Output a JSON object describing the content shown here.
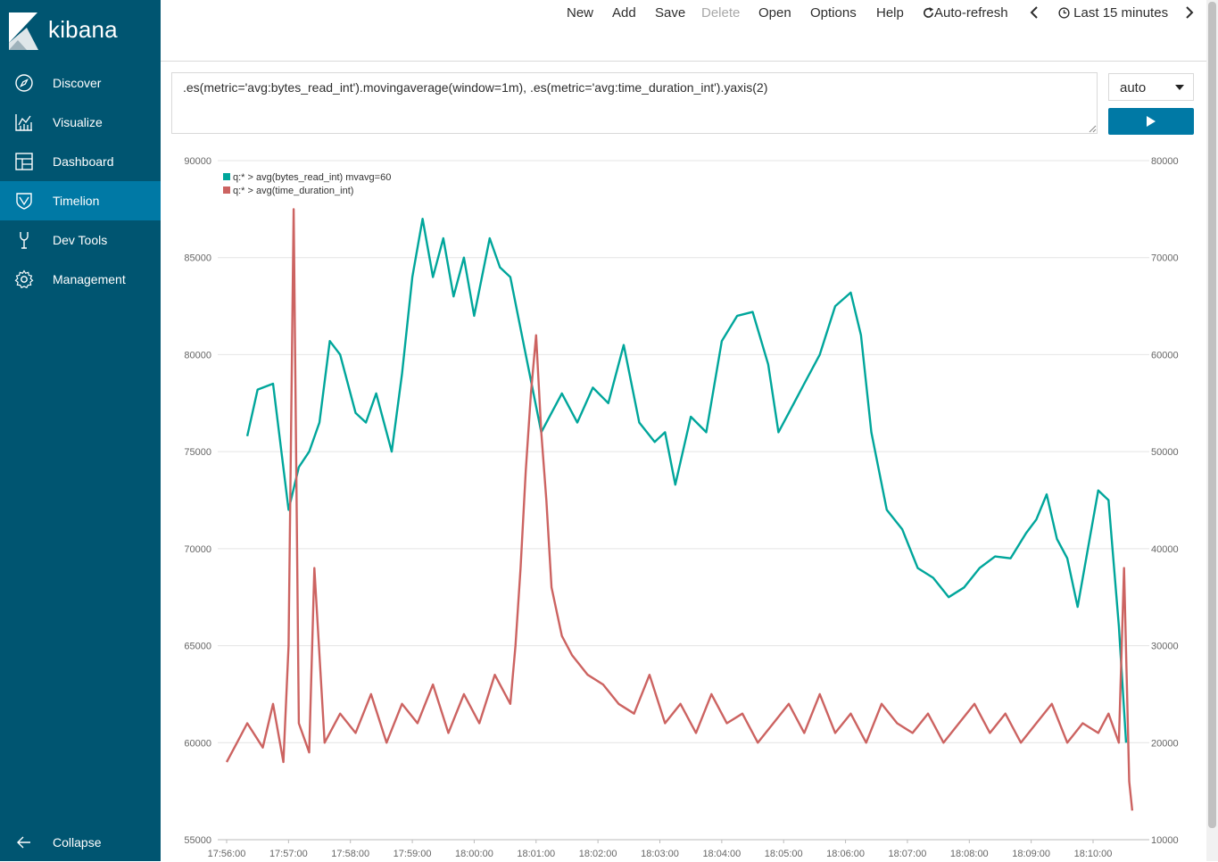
{
  "app": {
    "name": "kibana"
  },
  "sidebar": {
    "items": [
      {
        "label": "Discover",
        "icon": "compass-icon"
      },
      {
        "label": "Visualize",
        "icon": "bar-chart-icon"
      },
      {
        "label": "Dashboard",
        "icon": "dashboard-icon"
      },
      {
        "label": "Timelion",
        "icon": "timelion-shield-icon",
        "active": true
      },
      {
        "label": "Dev Tools",
        "icon": "wrench-icon"
      },
      {
        "label": "Management",
        "icon": "gear-icon"
      }
    ],
    "collapse_label": "Collapse"
  },
  "topnav": {
    "new": "New",
    "add": "Add",
    "save": "Save",
    "delete": "Delete",
    "open": "Open",
    "options": "Options",
    "help": "Help",
    "auto_refresh": "Auto-refresh",
    "time_range": "Last 15 minutes"
  },
  "query": {
    "expression": ".es(metric='avg:bytes_read_int').movingaverage(window=1m), .es(metric='avg:time_duration_int').yaxis(2)"
  },
  "interval": {
    "selected": "auto"
  },
  "colors": {
    "sidebar": "#005571",
    "active": "#0079a5",
    "series1": "#00a69b",
    "series2": "#cc6361"
  },
  "chart_data": {
    "type": "line",
    "x": [
      "17:56:00",
      "17:57:00",
      "17:58:00",
      "17:59:00",
      "18:00:00",
      "18:01:00",
      "18:02:00",
      "18:03:00",
      "18:04:00",
      "18:05:00",
      "18:06:00",
      "18:07:00",
      "18:08:00",
      "18:09:00",
      "18:10:00"
    ],
    "y_left": {
      "ticks": [
        "90000",
        "85000",
        "80000",
        "75000",
        "70000",
        "65000",
        "60000",
        "55000"
      ],
      "ylim": [
        55000,
        90000
      ]
    },
    "y_right": {
      "ticks": [
        "80000",
        "70000",
        "60000",
        "50000",
        "40000",
        "30000",
        "20000",
        "10000"
      ],
      "ylim": [
        10000,
        80000
      ]
    },
    "legend_position": "top-left",
    "grid": true,
    "series": [
      {
        "name": "q:* > avg(bytes_read_int) mvavg=60",
        "axis": "left",
        "x": [
          "17:56:20",
          "17:56:30",
          "17:56:45",
          "17:57:00",
          "17:57:10",
          "17:57:20",
          "17:57:30",
          "17:57:40",
          "17:57:50",
          "17:58:05",
          "17:58:15",
          "17:58:25",
          "17:58:40",
          "17:58:50",
          "17:59:00",
          "17:59:10",
          "17:59:20",
          "17:59:30",
          "17:59:40",
          "17:59:50",
          "18:00:00",
          "18:00:15",
          "18:00:25",
          "18:00:35",
          "18:00:50",
          "18:01:05",
          "18:01:15",
          "18:01:25",
          "18:01:40",
          "18:01:55",
          "18:02:10",
          "18:02:25",
          "18:02:40",
          "18:02:55",
          "18:03:05",
          "18:03:15",
          "18:03:30",
          "18:03:45",
          "18:04:00",
          "18:04:15",
          "18:04:30",
          "18:04:45",
          "18:04:55",
          "18:05:05",
          "18:05:20",
          "18:05:35",
          "18:05:50",
          "18:06:05",
          "18:06:15",
          "18:06:25",
          "18:06:40",
          "18:06:55",
          "18:07:10",
          "18:07:25",
          "18:07:40",
          "18:07:55",
          "18:08:10",
          "18:08:25",
          "18:08:40",
          "18:08:55",
          "18:09:05",
          "18:09:15",
          "18:09:25",
          "18:09:35",
          "18:09:45",
          "18:09:55",
          "18:10:05",
          "18:10:15",
          "18:10:25",
          "18:10:32"
        ],
        "values": [
          75800,
          78200,
          78500,
          72000,
          74200,
          75000,
          76500,
          80700,
          80000,
          77000,
          76500,
          78000,
          75000,
          79000,
          84000,
          87000,
          84000,
          86000,
          83000,
          85000,
          82000,
          86000,
          84500,
          84000,
          80000,
          76000,
          77000,
          78000,
          76500,
          78300,
          77500,
          80500,
          76500,
          75500,
          76000,
          73300,
          76800,
          76000,
          80700,
          82000,
          82200,
          79500,
          76000,
          77000,
          78500,
          80000,
          82500,
          83200,
          81000,
          76000,
          72000,
          71000,
          69000,
          68500,
          67500,
          68000,
          69000,
          69600,
          69500,
          70800,
          71500,
          72800,
          70500,
          69500,
          67000,
          70000,
          73000,
          72500,
          66000,
          60000
        ]
      },
      {
        "name": "q:* > avg(time_duration_int)",
        "axis": "right",
        "x": [
          "17:56:00",
          "17:56:10",
          "17:56:20",
          "17:56:35",
          "17:56:45",
          "17:56:55",
          "17:57:00",
          "17:57:05",
          "17:57:10",
          "17:57:20",
          "17:57:25",
          "17:57:35",
          "17:57:50",
          "17:58:05",
          "17:58:20",
          "17:58:35",
          "17:58:50",
          "17:59:05",
          "17:59:20",
          "17:59:35",
          "17:59:50",
          "18:00:05",
          "18:00:20",
          "18:00:35",
          "18:00:40",
          "18:00:45",
          "18:00:50",
          "18:00:55",
          "18:01:00",
          "18:01:05",
          "18:01:10",
          "18:01:15",
          "18:01:25",
          "18:01:35",
          "18:01:50",
          "18:02:05",
          "18:02:20",
          "18:02:35",
          "18:02:50",
          "18:03:05",
          "18:03:20",
          "18:03:35",
          "18:03:50",
          "18:04:05",
          "18:04:20",
          "18:04:35",
          "18:04:50",
          "18:05:05",
          "18:05:20",
          "18:05:35",
          "18:05:50",
          "18:06:05",
          "18:06:20",
          "18:06:35",
          "18:06:50",
          "18:07:05",
          "18:07:20",
          "18:07:35",
          "18:07:50",
          "18:08:05",
          "18:08:20",
          "18:08:35",
          "18:08:50",
          "18:09:05",
          "18:09:20",
          "18:09:35",
          "18:09:50",
          "18:10:05",
          "18:10:15",
          "18:10:25",
          "18:10:30",
          "18:10:35",
          "18:10:38"
        ],
        "values": [
          18000,
          20000,
          22000,
          19500,
          24000,
          18000,
          30000,
          75000,
          22000,
          19000,
          38000,
          20000,
          23000,
          21000,
          25000,
          20000,
          24000,
          22000,
          26000,
          21000,
          25000,
          22000,
          27000,
          24000,
          30000,
          38000,
          48000,
          56000,
          62000,
          52000,
          45000,
          36000,
          31000,
          29000,
          27000,
          26000,
          24000,
          23000,
          27000,
          22000,
          24000,
          21000,
          25000,
          22000,
          23000,
          20000,
          22000,
          24000,
          21000,
          25000,
          21000,
          23000,
          20000,
          24000,
          22000,
          21000,
          23000,
          20000,
          22000,
          24000,
          21000,
          23000,
          20000,
          22000,
          24000,
          20000,
          22000,
          21000,
          23000,
          20000,
          38000,
          16000,
          13000
        ]
      }
    ]
  }
}
